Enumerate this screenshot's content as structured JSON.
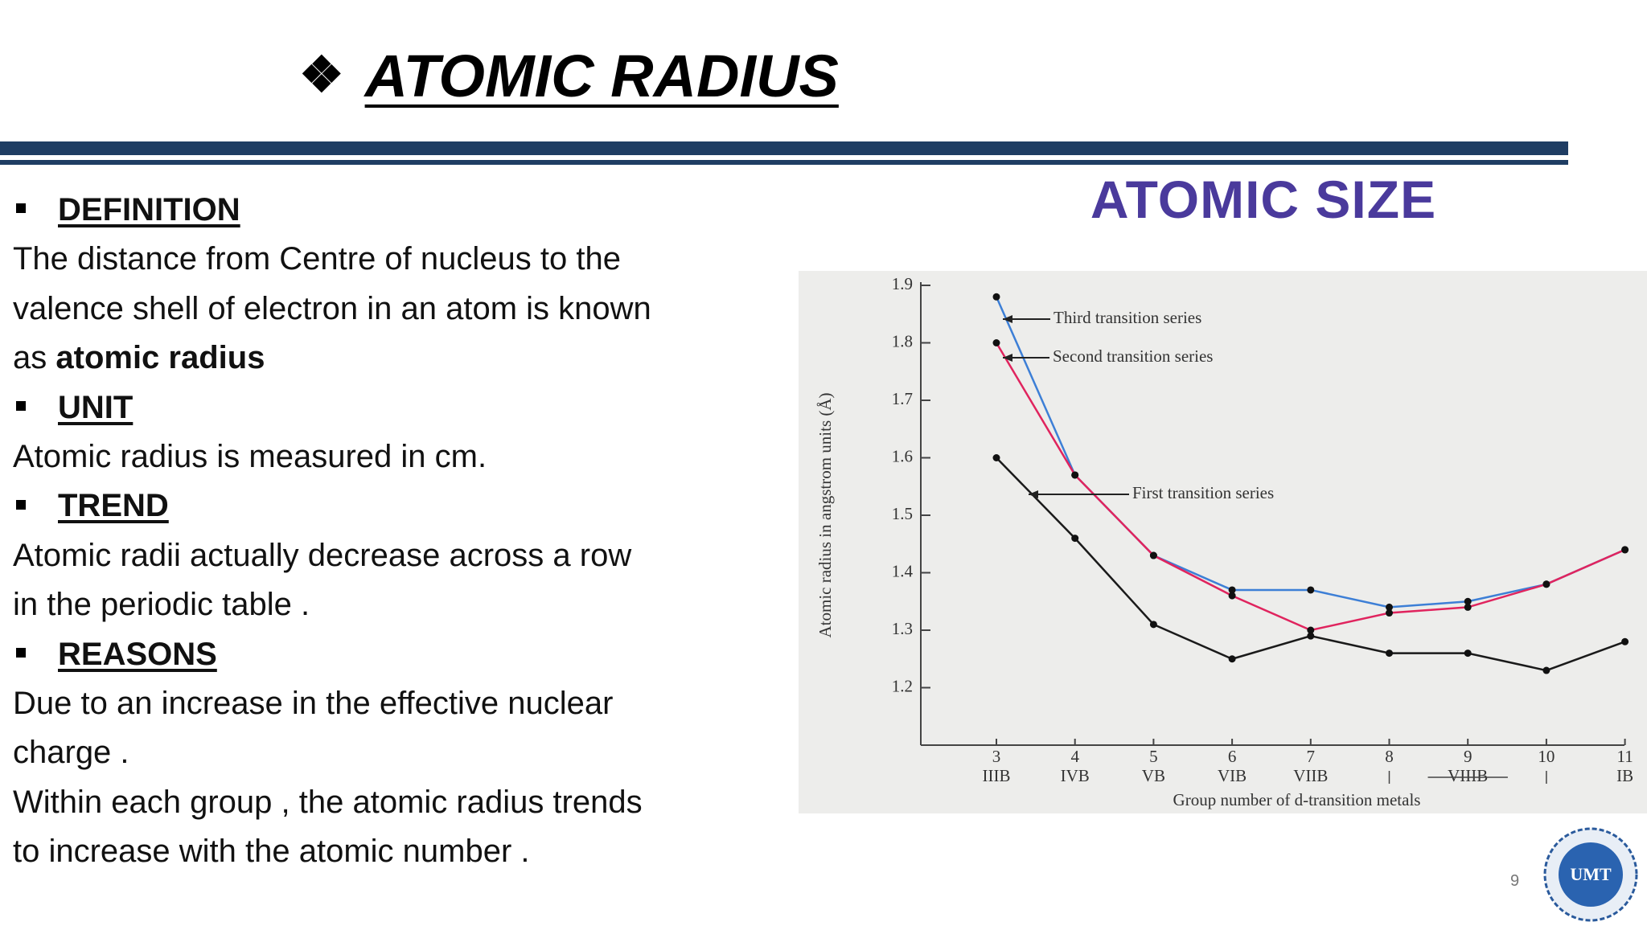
{
  "slide": {
    "title": "ATOMIC RADIUS",
    "page_number": "9",
    "logo_text": "UMT"
  },
  "sections": [
    {
      "heading": "DEFINITION",
      "lines": [
        "The distance from Centre of nucleus to the",
        "valence shell of electron in an atom is known",
        "as"
      ],
      "bold": "atomic radius"
    },
    {
      "heading": "UNIT",
      "lines": [
        "Atomic radius is measured in cm."
      ]
    },
    {
      "heading": "TREND",
      "lines": [
        "Atomic radii actually decrease across a row",
        "in the periodic table ."
      ]
    },
    {
      "heading": "REASONS",
      "lines": [
        "Due to an increase in the effective nuclear",
        "charge .",
        "Within each group , the atomic radius trends",
        "to increase with the atomic number ."
      ]
    }
  ],
  "chart_data": {
    "type": "line",
    "title": "ATOMIC SIZE",
    "y_label": "Atomic radius in angstrom units (Å)",
    "x_label": "Group number of d-transition metals",
    "categories": [
      "3",
      "4",
      "5",
      "6",
      "7",
      "8",
      "9",
      "10",
      "11"
    ],
    "group_labels": [
      "IIIB",
      "IVB",
      "VB",
      "VIB",
      "VIIB",
      null,
      "VIIIB",
      null,
      "IB"
    ],
    "ylim": [
      1.1,
      1.9
    ],
    "yticks": [
      1.2,
      1.3,
      1.4,
      1.5,
      1.6,
      1.7,
      1.8,
      1.9
    ],
    "series": [
      {
        "name": "Third transition series",
        "color": "#3d7fd6",
        "values": [
          1.88,
          1.57,
          1.43,
          1.37,
          1.37,
          1.34,
          1.35,
          1.38,
          1.44
        ]
      },
      {
        "name": "Second transition series",
        "color": "#e0245e",
        "values": [
          1.8,
          1.57,
          1.43,
          1.36,
          1.3,
          1.33,
          1.34,
          1.38,
          1.44
        ]
      },
      {
        "name": "First transition series",
        "color": "#1a1a1a",
        "values": [
          1.6,
          1.46,
          1.31,
          1.25,
          1.29,
          1.26,
          1.26,
          1.23,
          1.28
        ]
      }
    ]
  }
}
